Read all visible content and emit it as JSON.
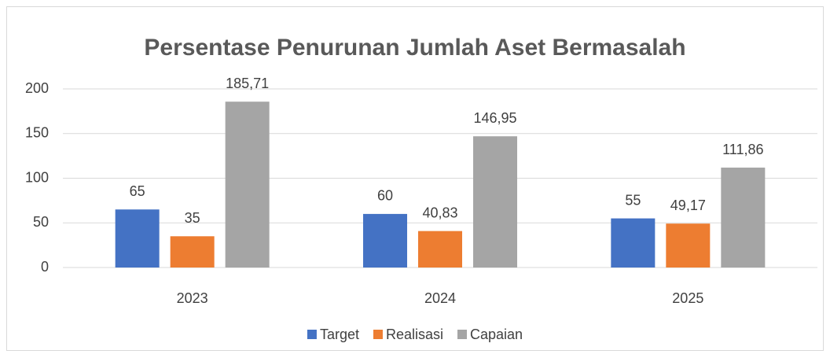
{
  "chart_data": {
    "type": "bar",
    "title": "Persentase Penurunan Jumlah Aset Bermasalah",
    "categories": [
      "2023",
      "2024",
      "2025"
    ],
    "series": [
      {
        "name": "Target",
        "color": "#4472c4",
        "values": [
          65,
          60,
          55
        ],
        "value_labels": [
          "65",
          "60",
          "55"
        ]
      },
      {
        "name": "Realisasi",
        "color": "#ed7d31",
        "values": [
          35,
          40.83,
          49.17
        ],
        "value_labels": [
          "35",
          "40,83",
          "49,17"
        ]
      },
      {
        "name": "Capaian",
        "color": "#a5a5a5",
        "values": [
          185.71,
          146.95,
          111.86
        ],
        "value_labels": [
          "185,71",
          "146,95",
          "111,86"
        ]
      }
    ],
    "ylim": [
      0,
      200
    ],
    "yticks": [
      0,
      50,
      100,
      150,
      200
    ],
    "grid": true,
    "legend": "bottom"
  }
}
